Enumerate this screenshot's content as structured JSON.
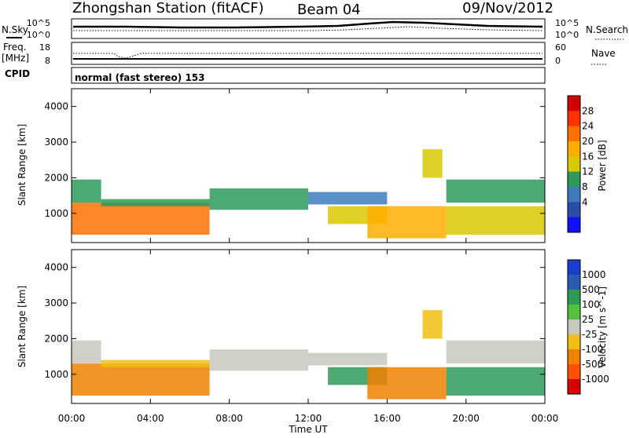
{
  "header": {
    "station": "Zhongshan Station (fitACF)",
    "beam": "Beam 04",
    "date": "09/Nov/2012"
  },
  "status_panels": {
    "nsky_label": "N.Sky",
    "nsky_ticks": [
      "10^5",
      "10^0"
    ],
    "nsearch_label": "N.Search",
    "nsearch_ticks": [
      "10^5",
      "10^0"
    ],
    "freq_label_1": "Freq.",
    "freq_label_2": "[MHz]",
    "freq_ticks": [
      "18",
      "8"
    ],
    "nave_label": "Nave",
    "nave_ticks": [
      "60",
      "0"
    ],
    "cpid_label": "CPID",
    "cpid_value": "normal (fast stereo) 153"
  },
  "colorbars": {
    "power": {
      "label": "Power [dB]",
      "ticks": [
        "28",
        "24",
        "20",
        "16",
        "12",
        "8",
        "4"
      ],
      "colors": [
        "#d40000",
        "#ff3000",
        "#ff7000",
        "#ffae00",
        "#d8c800",
        "#2e9a5a",
        "#3e7bbd",
        "#2a4ea8",
        "#1010ff"
      ]
    },
    "velocity": {
      "label": "Velocity [m s^-1]",
      "ticks": [
        "1000",
        "500",
        "100",
        "25",
        "-25",
        "-100",
        "-500",
        "-1000"
      ],
      "colors": [
        "#1a3fcf",
        "#2a5cb0",
        "#2e9a5a",
        "#55c040",
        "#c8c8c0",
        "#f0c010",
        "#f08000",
        "#ff5000",
        "#d80000"
      ]
    }
  },
  "chart_data": {
    "type": "heatmap",
    "x_label": "Time UT",
    "x_ticks": [
      "00:00",
      "04:00",
      "08:00",
      "12:00",
      "16:00",
      "20:00",
      "00:00"
    ],
    "x_range_hours": [
      0,
      24
    ],
    "y_label": "Slant Range [km]",
    "y_ticks": [
      "1000",
      "2000",
      "3000",
      "4000"
    ],
    "y_range_km": [
      180,
      4500
    ],
    "panels": [
      "Power",
      "Velocity"
    ],
    "echo_regions": [
      {
        "t0": 0.0,
        "t1": 7.0,
        "r0": 400,
        "r1": 1300,
        "power_db": 22,
        "velocity": -200
      },
      {
        "t0": 0.0,
        "t1": 1.5,
        "r0": 1300,
        "r1": 1950,
        "power_db": 8,
        "velocity": -20
      },
      {
        "t0": 1.5,
        "t1": 7.0,
        "r0": 1200,
        "r1": 1400,
        "power_db": 10,
        "velocity": -50
      },
      {
        "t0": 7.0,
        "t1": 12.0,
        "r0": 1100,
        "r1": 1700,
        "power_db": 8,
        "velocity": -20
      },
      {
        "t0": 12.0,
        "t1": 16.0,
        "r0": 1250,
        "r1": 1600,
        "power_db": 6,
        "velocity": -15
      },
      {
        "t0": 13.0,
        "t1": 16.0,
        "r0": 700,
        "r1": 1200,
        "power_db": 14,
        "velocity": 100
      },
      {
        "t0": 15.0,
        "t1": 19.0,
        "r0": 300,
        "r1": 1200,
        "power_db": 18,
        "velocity": -150
      },
      {
        "t0": 17.8,
        "t1": 18.8,
        "r0": 2000,
        "r1": 2800,
        "power_db": 12,
        "velocity": -100
      },
      {
        "t0": 19.0,
        "t1": 24.0,
        "r0": 400,
        "r1": 1200,
        "power_db": 14,
        "velocity": 150
      },
      {
        "t0": 19.0,
        "t1": 24.0,
        "r0": 1300,
        "r1": 1950,
        "power_db": 8,
        "velocity": -20
      }
    ]
  }
}
